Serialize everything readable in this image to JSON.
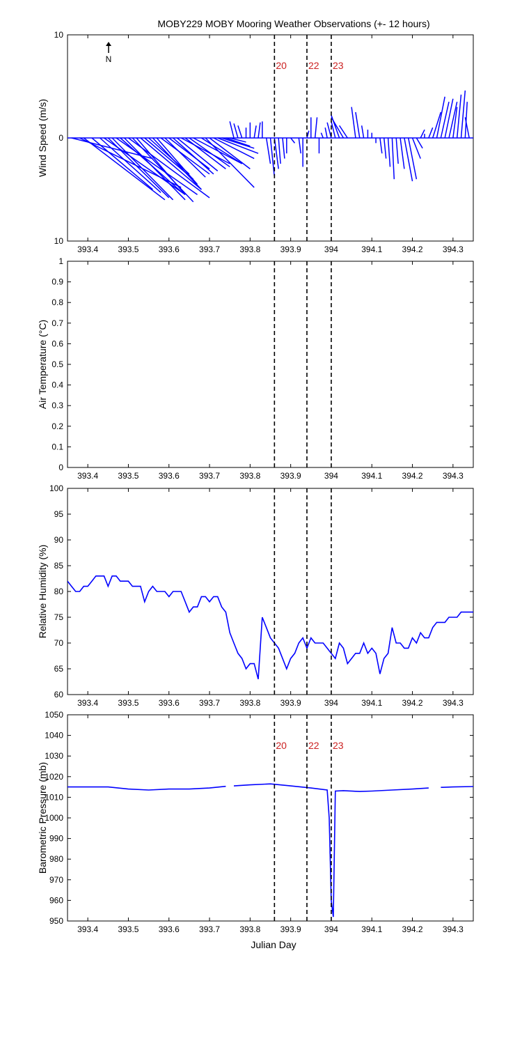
{
  "figure": {
    "title": "MOBY229 MOBY Mooring Weather Observations (+- 12 hours)",
    "xlabel": "Julian Day",
    "north_label": "N"
  },
  "chart_data": [
    {
      "type": "line",
      "variant": "wind-stick",
      "ylabel": "Wind Speed (m/s)",
      "ylim": [
        -10,
        10
      ],
      "yticks": [
        -10,
        0,
        10
      ],
      "ytick_labels": [
        "10",
        "0",
        "10"
      ],
      "xlim": [
        393.35,
        394.35
      ],
      "xticks": [
        393.4,
        393.5,
        393.6,
        393.7,
        393.8,
        393.9,
        394.0,
        394.1,
        394.2,
        394.3
      ],
      "xtick_labels": [
        "393.4",
        "393.5",
        "393.6",
        "393.7",
        "393.8",
        "393.9",
        "394",
        "394.1",
        "394.2",
        "394.3"
      ],
      "markers": [
        {
          "x": 393.86,
          "label": "20"
        },
        {
          "x": 393.94,
          "label": "22"
        },
        {
          "x": 394.0,
          "label": "23"
        }
      ],
      "series": [
        {
          "color": "#0000ff",
          "x": [
            393.36,
            393.38,
            393.39,
            393.41,
            393.43,
            393.44,
            393.45,
            393.46,
            393.47,
            393.48,
            393.49,
            393.5,
            393.51,
            393.52,
            393.53,
            393.54,
            393.55,
            393.56,
            393.57,
            393.58,
            393.59,
            393.6,
            393.61,
            393.62,
            393.63,
            393.64,
            393.65,
            393.66,
            393.68,
            393.69,
            393.7,
            393.71,
            393.72,
            393.73,
            393.74,
            393.75,
            393.76,
            393.77,
            393.78,
            393.79,
            393.8,
            393.81,
            393.82,
            393.83,
            393.84,
            393.85,
            393.86,
            393.87,
            393.88,
            393.89,
            393.9,
            393.92,
            393.93,
            393.94,
            393.95,
            393.96,
            393.97,
            393.98,
            393.99,
            394.0,
            394.01,
            394.02,
            394.03,
            394.04,
            394.06,
            394.07,
            394.08,
            394.09,
            394.1,
            394.11,
            394.12,
            394.13,
            394.14,
            394.15,
            394.16,
            394.17,
            394.18,
            394.19,
            394.2,
            394.21,
            394.22,
            394.23,
            394.24,
            394.25,
            394.26,
            394.27,
            394.28,
            394.29,
            394.3,
            394.31,
            394.32,
            394.33,
            394.34
          ],
          "u": [
            0.2,
            0.25,
            0.2,
            0.15,
            0.15,
            0.2,
            0.15,
            0.15,
            0.2,
            0.15,
            0.15,
            0.2,
            0.15,
            0.12,
            0.15,
            0.12,
            0.1,
            0.12,
            0.1,
            0.12,
            0.1,
            0.1,
            0.1,
            0.1,
            0.12,
            0.1,
            0.1,
            0.12,
            0.1,
            0.12,
            0.1,
            0.1,
            0.1,
            0.08,
            0.06,
            0.04,
            -0.01,
            -0.01,
            -0.01,
            0.0,
            0.0,
            0.005,
            0.005,
            0.0,
            0.01,
            0.01,
            0.01,
            0.005,
            0.005,
            0.0,
            0.01,
            0.005,
            0.0,
            0.005,
            0.0,
            0.005,
            0.0,
            -0.005,
            -0.005,
            -0.01,
            -0.01,
            -0.02,
            -0.03,
            -0.02,
            -0.01,
            -0.01,
            -0.005,
            0.0,
            0.0,
            0.0,
            0.005,
            0.005,
            0.005,
            0.005,
            0.005,
            0.01,
            0.02,
            0.02,
            0.02,
            0.015,
            0.01,
            0.0,
            0.01,
            0.02,
            0.02,
            0.02,
            0.02,
            0.02,
            0.01,
            0.01,
            0.01,
            0.005,
            -0.01
          ],
          "v": [
            -2.0,
            -4.8,
            -6.0,
            -5.0,
            -5.3,
            -5.5,
            -5.8,
            -6.0,
            -5.5,
            -5.2,
            -6.0,
            -5.8,
            -6.2,
            -5.5,
            -5.0,
            -4.0,
            -3.5,
            -5.0,
            -4.5,
            -3.5,
            -3.8,
            -3.0,
            -3.5,
            -3.2,
            -2.5,
            -3.0,
            -2.8,
            -2.5,
            -2.5,
            -4.8,
            -3.0,
            -2.0,
            -1.5,
            -1.0,
            -0.8,
            -0.4,
            1.6,
            1.4,
            1.2,
            1.0,
            1.5,
            1.2,
            1.5,
            1.6,
            -2.5,
            -3.8,
            -3.0,
            -2.5,
            -2.0,
            -1.5,
            -0.5,
            -1.5,
            -2.8,
            0.7,
            2.0,
            2.0,
            -1.5,
            0.5,
            1.0,
            1.5,
            1.6,
            2.2,
            2.0,
            1.2,
            3.0,
            2.5,
            1.2,
            0.8,
            0.5,
            -0.5,
            -1.5,
            -2.0,
            -2.8,
            -4.0,
            -2.5,
            -3.0,
            -4.2,
            -4.0,
            -2.0,
            -1.0,
            0.8,
            0.4,
            1.0,
            2.5,
            4.0,
            3.5,
            3.8,
            3.5,
            3.0,
            4.2,
            4.6,
            3.5,
            2.0
          ]
        }
      ]
    },
    {
      "type": "line",
      "ylabel": "Air Temperature (°C)",
      "ylim": [
        0,
        1
      ],
      "yticks": [
        0,
        0.1,
        0.2,
        0.3,
        0.4,
        0.5,
        0.6,
        0.7,
        0.8,
        0.9,
        1
      ],
      "ytick_labels": [
        "0",
        "0.1",
        "0.2",
        "0.3",
        "0.4",
        "0.5",
        "0.6",
        "0.7",
        "0.8",
        "0.9",
        "1"
      ],
      "xlim": [
        393.35,
        394.35
      ],
      "xticks": [
        393.4,
        393.5,
        393.6,
        393.7,
        393.8,
        393.9,
        394.0,
        394.1,
        394.2,
        394.3
      ],
      "xtick_labels": [
        "393.4",
        "393.5",
        "393.6",
        "393.7",
        "393.8",
        "393.9",
        "394",
        "394.1",
        "394.2",
        "394.3"
      ],
      "markers": [
        {
          "x": 393.86,
          "label": ""
        },
        {
          "x": 393.94,
          "label": ""
        },
        {
          "x": 394.0,
          "label": ""
        }
      ],
      "series": []
    },
    {
      "type": "line",
      "ylabel": "Relative Humidity (%)",
      "ylim": [
        60,
        100
      ],
      "yticks": [
        60,
        65,
        70,
        75,
        80,
        85,
        90,
        95,
        100
      ],
      "ytick_labels": [
        "60",
        "65",
        "70",
        "75",
        "80",
        "85",
        "90",
        "95",
        "100"
      ],
      "xlim": [
        393.35,
        394.35
      ],
      "xticks": [
        393.4,
        393.5,
        393.6,
        393.7,
        393.8,
        393.9,
        394.0,
        394.1,
        394.2,
        394.3
      ],
      "xtick_labels": [
        "393.4",
        "393.5",
        "393.6",
        "393.7",
        "393.8",
        "393.9",
        "394",
        "394.1",
        "394.2",
        "394.3"
      ],
      "markers": [
        {
          "x": 393.86,
          "label": ""
        },
        {
          "x": 393.94,
          "label": ""
        },
        {
          "x": 394.0,
          "label": ""
        }
      ],
      "series": [
        {
          "color": "#0000ff",
          "x": [
            393.35,
            393.36,
            393.37,
            393.38,
            393.39,
            393.4,
            393.41,
            393.42,
            393.43,
            393.44,
            393.45,
            393.46,
            393.47,
            393.48,
            393.49,
            393.5,
            393.51,
            393.52,
            393.53,
            393.54,
            393.55,
            393.56,
            393.57,
            393.58,
            393.59,
            393.6,
            393.61,
            393.62,
            393.63,
            393.64,
            393.65,
            393.66,
            393.67,
            393.68,
            393.69,
            393.7,
            393.71,
            393.72,
            393.73,
            393.74,
            393.75,
            393.76,
            393.77,
            393.78,
            393.79,
            393.8,
            393.81,
            393.82,
            393.83,
            393.84,
            393.85,
            393.87,
            393.88,
            393.89,
            393.9,
            393.91,
            393.92,
            393.93,
            393.94,
            393.95,
            393.96,
            393.97,
            393.98,
            393.99,
            394.0,
            394.01,
            394.02,
            394.03,
            394.04,
            394.05,
            394.06,
            394.07,
            394.08,
            394.09,
            394.1,
            394.11,
            394.12,
            394.13,
            394.14,
            394.15,
            394.16,
            394.17,
            394.18,
            394.19,
            394.2,
            394.21,
            394.22,
            394.23,
            394.24,
            394.25,
            394.26,
            394.27,
            394.28,
            394.29,
            394.3,
            394.31,
            394.32,
            394.33,
            394.34,
            394.35
          ],
          "y": [
            82,
            81,
            80,
            80,
            81,
            81,
            82,
            83,
            83,
            83,
            81,
            83,
            83,
            82,
            82,
            82,
            81,
            81,
            81,
            78,
            80,
            81,
            80,
            80,
            80,
            79,
            80,
            80,
            80,
            78,
            76,
            77,
            77,
            79,
            79,
            78,
            79,
            79,
            77,
            76,
            72,
            70,
            68,
            67,
            65,
            66,
            66,
            63,
            75,
            73,
            71,
            69,
            67,
            65,
            67,
            68,
            70,
            71,
            69,
            71,
            70,
            70,
            70,
            69,
            68,
            67,
            70,
            69,
            66,
            67,
            68,
            68,
            70,
            68,
            69,
            68,
            64,
            67,
            68,
            73,
            70,
            70,
            69,
            69,
            71,
            70,
            72,
            71,
            71,
            73,
            74,
            74,
            74,
            75,
            75,
            75,
            76,
            76,
            76,
            76
          ],
          "gaps_after_index": []
        }
      ]
    },
    {
      "type": "line",
      "ylabel": "Barometric Pressure (mb)",
      "ylim": [
        950,
        1050
      ],
      "yticks": [
        950,
        960,
        970,
        980,
        990,
        1000,
        1010,
        1020,
        1030,
        1040,
        1050
      ],
      "ytick_labels": [
        "950",
        "960",
        "970",
        "980",
        "990",
        "1000",
        "1010",
        "1020",
        "1030",
        "1040",
        "1050"
      ],
      "xlim": [
        393.35,
        394.35
      ],
      "xticks": [
        393.4,
        393.5,
        393.6,
        393.7,
        393.8,
        393.9,
        394.0,
        394.1,
        394.2,
        394.3
      ],
      "xtick_labels": [
        "393.4",
        "393.5",
        "393.6",
        "393.7",
        "393.8",
        "393.9",
        "394",
        "394.1",
        "394.2",
        "394.3"
      ],
      "markers": [
        {
          "x": 393.86,
          "label": "20"
        },
        {
          "x": 393.94,
          "label": "22"
        },
        {
          "x": 394.0,
          "label": "23"
        }
      ],
      "series": [
        {
          "color": "#0000ff",
          "x": [
            393.35,
            393.4,
            393.45,
            393.5,
            393.55,
            393.6,
            393.65,
            393.7,
            393.74
          ],
          "y": [
            1015,
            1015,
            1015,
            1014,
            1013.5,
            1014,
            1014,
            1014.5,
            1015.3
          ]
        },
        {
          "color": "#0000ff",
          "x": [
            393.76,
            393.8,
            393.85,
            393.9,
            393.95,
            393.99,
            393.995,
            394.0,
            394.005,
            394.01,
            394.03,
            394.07,
            394.1,
            394.15,
            394.2,
            394.24
          ],
          "y": [
            1015.5,
            1016,
            1016.5,
            1015.5,
            1014.5,
            1013.5,
            1000,
            960,
            952,
            1013,
            1013.2,
            1012.8,
            1013,
            1013.5,
            1014,
            1014.5
          ]
        },
        {
          "color": "#0000ff",
          "x": [
            394.27,
            394.3,
            394.35
          ],
          "y": [
            1014.8,
            1015,
            1015.2
          ]
        }
      ]
    }
  ]
}
